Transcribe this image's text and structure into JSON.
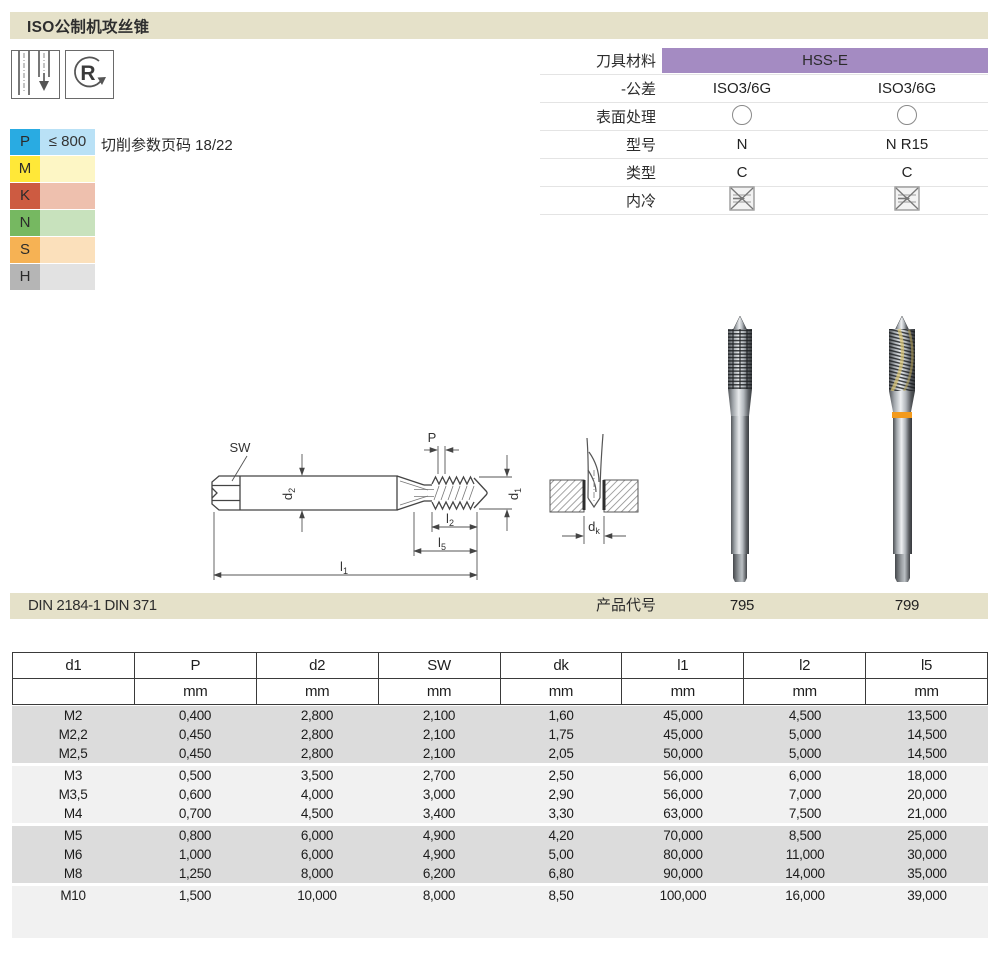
{
  "page": {
    "title": "ISO公制机攻丝锥"
  },
  "icons": {
    "through_hole_icon": "through-hole-tapping-symbol",
    "right_hand_icon": "R",
    "coolant_symbol": "crossed-internal-coolant-box",
    "surface_symbol": "bright-finish-circle"
  },
  "spec": {
    "material_label": "刀具材料",
    "material_value": "HSS-E",
    "material_color": "#a48bc2",
    "tolerance_label": "-公差",
    "tolerance_1": "ISO3/6G",
    "tolerance_2": "ISO3/6G",
    "surface_label": "表面处理",
    "model_label": "型号",
    "model_1": "N",
    "model_2": "N R15",
    "type_label": "类型",
    "type_1": "C",
    "type_2": "C",
    "coolant_label": "内冷"
  },
  "material_classes": [
    {
      "code": "P",
      "color": "#29abe2",
      "light": "#b9e1f6",
      "note": "≤ 800"
    },
    {
      "code": "M",
      "color": "#ffe838",
      "light": "#fdf6c5",
      "note": ""
    },
    {
      "code": "K",
      "color": "#cd5b41",
      "light": "#eec0ae",
      "note": ""
    },
    {
      "code": "N",
      "color": "#76b861",
      "light": "#c8e2bd",
      "note": ""
    },
    {
      "code": "S",
      "color": "#f6b254",
      "light": "#fbe0bb",
      "note": ""
    },
    {
      "code": "H",
      "color": "#b5b5b5",
      "light": "#e2e2e2",
      "note": ""
    }
  ],
  "note": {
    "cutting_note": "切削参数页码 18/22"
  },
  "diagram": {
    "sw": "SW",
    "p": "P",
    "d1_base": "d",
    "d1_sub": "1",
    "d2_base": "d",
    "d2_sub": "2",
    "l1_base": "l",
    "l1_sub": "1",
    "l2_base": "l",
    "l2_sub": "2",
    "l5_base": "l",
    "l5_sub": "5",
    "dk_base": "d",
    "dk_sub": "k"
  },
  "standards": {
    "din": "DIN 2184-1 DIN 371",
    "product_code_label": "产品代号",
    "codes": [
      "795",
      "799"
    ]
  },
  "dimension_table": {
    "headers": [
      "d1",
      "P",
      "d2",
      "SW",
      "dk",
      "l1",
      "l2",
      "l5"
    ],
    "units": [
      "",
      "mm",
      "mm",
      "mm",
      "mm",
      "mm",
      "mm",
      "mm"
    ],
    "rows": [
      [
        "M2",
        "0,400",
        "2,800",
        "2,100",
        "1,60",
        "45,000",
        "4,500",
        "13,500"
      ],
      [
        "M2,2",
        "0,450",
        "2,800",
        "2,100",
        "1,75",
        "45,000",
        "5,000",
        "14,500"
      ],
      [
        "M2,5",
        "0,450",
        "2,800",
        "2,100",
        "2,05",
        "50,000",
        "5,000",
        "14,500"
      ],
      [
        "M3",
        "0,500",
        "3,500",
        "2,700",
        "2,50",
        "56,000",
        "6,000",
        "18,000"
      ],
      [
        "M3,5",
        "0,600",
        "4,000",
        "3,000",
        "2,90",
        "56,000",
        "7,000",
        "20,000"
      ],
      [
        "M4",
        "0,700",
        "4,500",
        "3,400",
        "3,30",
        "63,000",
        "7,500",
        "21,000"
      ],
      [
        "M5",
        "0,800",
        "6,000",
        "4,900",
        "4,20",
        "70,000",
        "8,500",
        "25,000"
      ],
      [
        "M6",
        "1,000",
        "6,000",
        "4,900",
        "5,00",
        "80,000",
        "11,000",
        "30,000"
      ],
      [
        "M8",
        "1,250",
        "8,000",
        "6,200",
        "6,80",
        "90,000",
        "14,000",
        "35,000"
      ],
      [
        "M10",
        "1,500",
        "10,000",
        "8,000",
        "8,50",
        "100,000",
        "16,000",
        "39,000"
      ]
    ],
    "groups": [
      {
        "shade": "#dcdcdc",
        "rows": [
          0,
          1,
          2
        ],
        "pad": 0
      },
      {
        "shade": "#f1f1f1",
        "rows": [
          3,
          4,
          5
        ],
        "pad": 0
      },
      {
        "shade": "#dcdcdc",
        "rows": [
          6,
          7,
          8
        ],
        "pad": 0
      },
      {
        "shade": "#f1f1f1",
        "rows": [
          9
        ],
        "pad": 33
      }
    ]
  }
}
